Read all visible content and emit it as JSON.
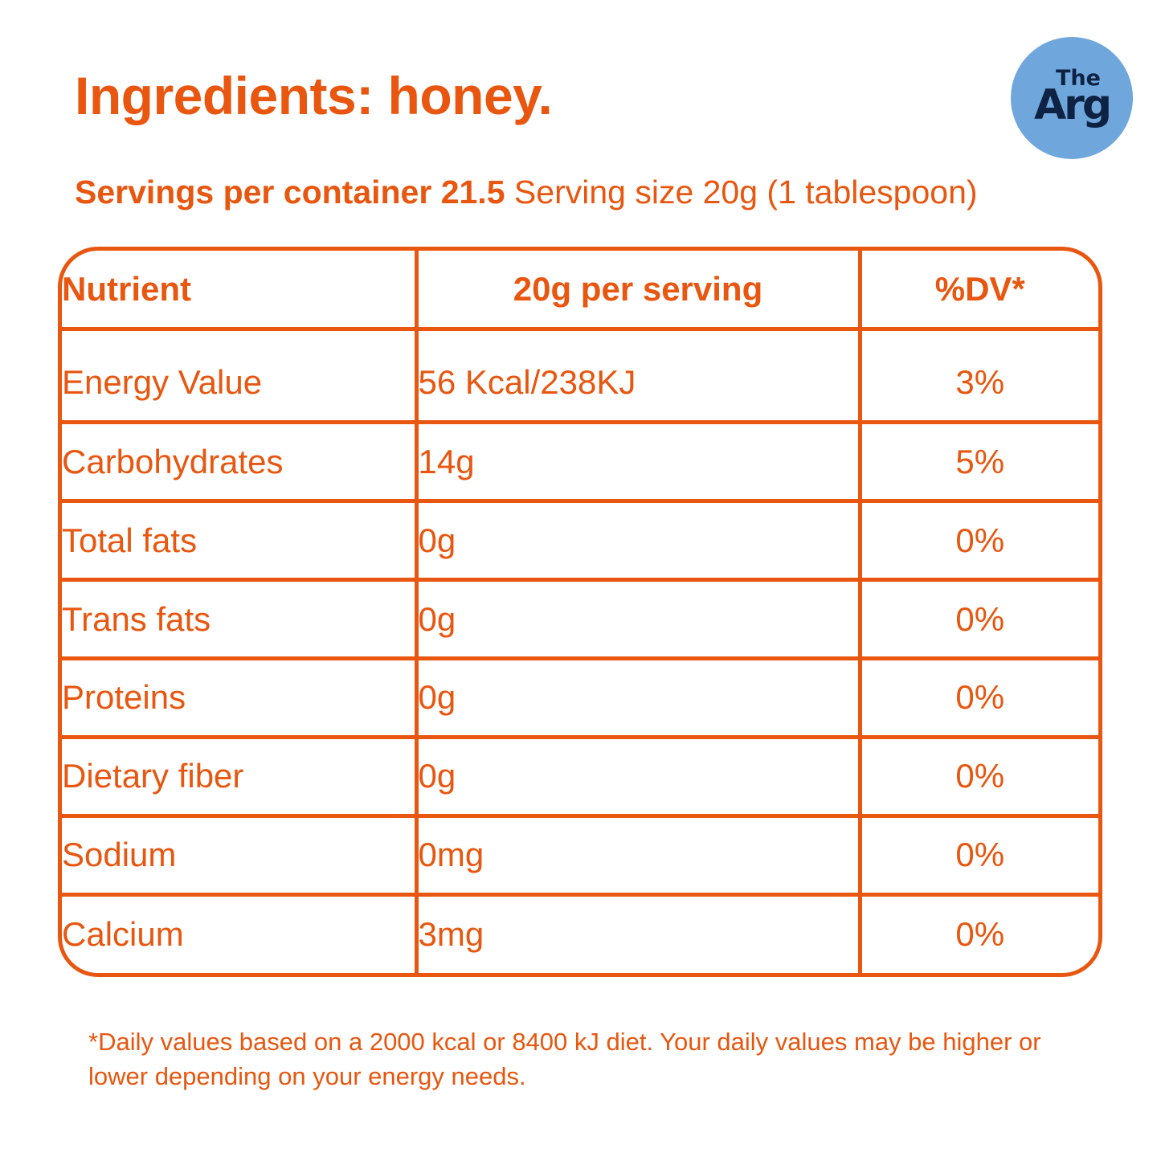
{
  "title": "Ingredients: honey.",
  "brand": {
    "logo_line1": "The",
    "logo_line2": "Arg",
    "logo_bg": "#6fa7dd",
    "logo_fg": "#0e2243"
  },
  "servings": {
    "per_container": "Servings per container 21.5",
    "serving_size": "Serving size 20g (1 tablespoon)"
  },
  "table": {
    "headers": {
      "nutrient": "Nutrient",
      "per_serving": "20g per serving",
      "dv": "%DV*"
    },
    "rows": [
      {
        "nutrient": "Energy Value",
        "amount": "56 Kcal/238KJ",
        "dv": "3%"
      },
      {
        "nutrient": "Carbohydrates",
        "amount": "14g",
        "dv": "5%"
      },
      {
        "nutrient": "Total fats",
        "amount": "0g",
        "dv": "0%"
      },
      {
        "nutrient": "Trans fats",
        "amount": "0g",
        "dv": "0%"
      },
      {
        "nutrient": "Proteins",
        "amount": "0g",
        "dv": "0%"
      },
      {
        "nutrient": "Dietary fiber",
        "amount": "0g",
        "dv": "0%"
      },
      {
        "nutrient": "Sodium",
        "amount": "0mg",
        "dv": "0%"
      },
      {
        "nutrient": "Calcium",
        "amount": "3mg",
        "dv": "0%"
      }
    ]
  },
  "footnote": "*Daily values based on a 2000 kcal or 8400 kJ diet. Your daily values may be higher or lower depending on your energy needs.",
  "colors": {
    "accent": "#e8560f",
    "background": "#ffffff"
  }
}
